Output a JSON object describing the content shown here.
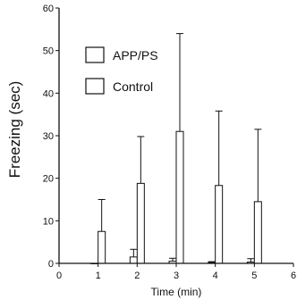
{
  "chart_data": {
    "type": "bar",
    "xlabel": "Time (min)",
    "ylabel": "Freezing (sec)",
    "xlim": [
      0,
      6
    ],
    "ylim": [
      0,
      60
    ],
    "x_ticks": [
      "0",
      "1",
      "2",
      "3",
      "4",
      "5",
      "6"
    ],
    "y_ticks": [
      "0",
      "10",
      "20",
      "30",
      "40",
      "50",
      "60"
    ],
    "grid": false,
    "legend_position": "top-left",
    "series": [
      {
        "name": "APP/PS",
        "x": [
          1,
          2,
          3,
          4,
          5
        ],
        "values": [
          0,
          1.5,
          0.5,
          0.2,
          0.3
        ],
        "errors": [
          0,
          1.8,
          0.7,
          0.2,
          0.8
        ]
      },
      {
        "name": "Control",
        "x": [
          1,
          2,
          3,
          4,
          5
        ],
        "values": [
          7.5,
          18.8,
          31,
          18.3,
          14.5
        ],
        "errors": [
          7.5,
          11,
          23,
          17.5,
          17
        ]
      }
    ]
  }
}
